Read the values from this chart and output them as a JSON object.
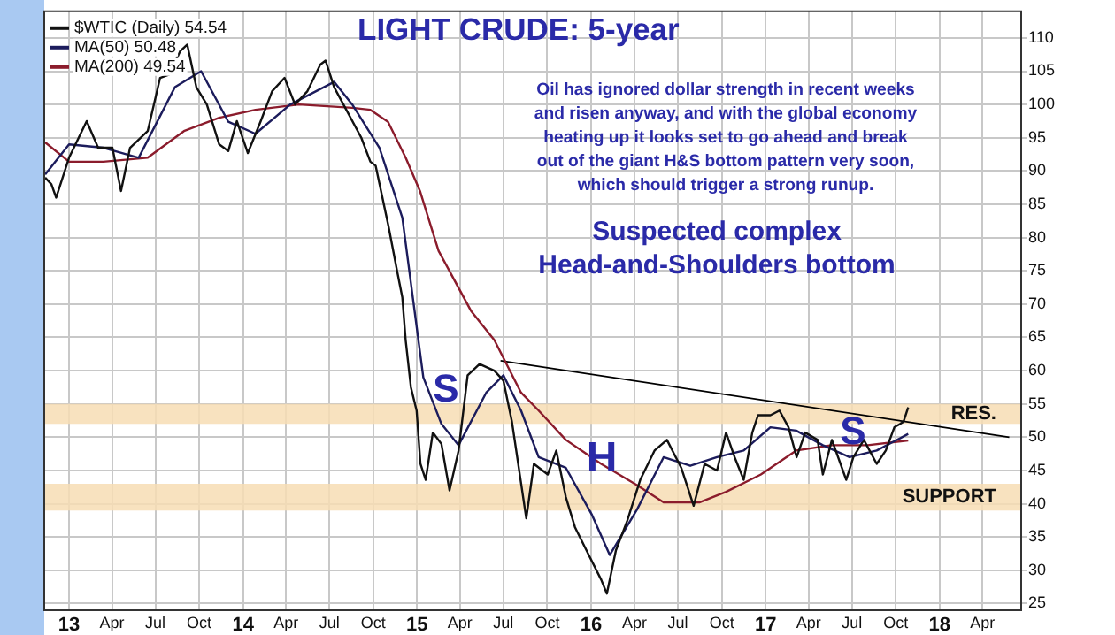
{
  "chart_data": {
    "type": "line",
    "title": "LIGHT CRUDE: 5-year",
    "annotations": [
      "Oil has ignored dollar strength in recent weeks\nand risen anyway, and with the global economy\nheating up it looks set to go ahead and break\nout of the giant H&S bottom pattern very soon,\nwhich should trigger a strong runup.",
      "Suspected complex\nHead-and-Shoulders bottom",
      "S",
      "H",
      "S"
    ],
    "series": [
      {
        "name": "$WTIC (Daily) 54.54",
        "color": "#111111",
        "x": [
          "2012-11-12",
          "2012-11-25",
          "2012-12-05",
          "2013-01-01",
          "2013-02-07",
          "2013-03-03",
          "2013-04-02",
          "2013-04-20",
          "2013-05-09",
          "2013-06-15",
          "2013-07-11",
          "2013-07-30",
          "2013-08-22",
          "2013-09-06",
          "2013-09-25",
          "2013-10-17",
          "2013-11-12",
          "2013-12-01",
          "2013-12-19",
          "2014-01-11",
          "2014-02-07",
          "2014-03-03",
          "2014-03-29",
          "2014-04-20",
          "2014-05-16",
          "2014-06-12",
          "2014-06-23",
          "2014-07-11",
          "2014-08-07",
          "2014-09-06",
          "2014-09-25",
          "2014-10-06",
          "2014-11-02",
          "2014-11-20",
          "2014-12-01",
          "2014-12-08",
          "2014-12-19",
          "2014-12-31",
          "2015-01-08",
          "2015-01-19",
          "2015-02-03",
          "2015-02-21",
          "2015-03-10",
          "2015-03-29",
          "2015-04-17",
          "2015-05-12",
          "2015-06-12",
          "2015-07-01",
          "2015-07-19",
          "2015-08-18",
          "2015-09-03",
          "2015-10-02",
          "2015-10-20",
          "2015-11-09",
          "2015-11-28",
          "2015-12-27",
          "2016-01-22",
          "2016-02-03",
          "2016-02-22",
          "2016-03-17",
          "2016-04-13",
          "2016-05-13",
          "2016-06-08",
          "2016-07-08",
          "2016-08-03",
          "2016-08-26",
          "2016-09-21",
          "2016-10-10",
          "2016-10-28",
          "2016-11-16",
          "2016-12-04",
          "2016-12-16",
          "2017-01-11",
          "2017-01-30",
          "2017-02-18",
          "2017-03-07",
          "2017-03-25",
          "2017-04-20",
          "2017-05-01",
          "2017-05-20",
          "2017-06-19",
          "2017-07-04",
          "2017-07-26",
          "2017-08-22",
          "2017-09-10",
          "2017-09-28",
          "2017-10-17",
          "2017-10-27"
        ],
        "values": [
          89,
          88,
          86,
          92,
          97.5,
          93.5,
          93.5,
          87,
          93.5,
          96,
          104,
          104.5,
          108,
          109,
          102.6,
          100,
          94,
          93,
          97.5,
          92.7,
          97.5,
          102,
          104,
          100,
          102,
          106,
          106.6,
          102.6,
          99,
          95,
          91.4,
          90.8,
          81.7,
          75,
          71,
          64.6,
          57.5,
          54,
          46,
          43.6,
          50.7,
          49,
          42,
          48,
          59.3,
          61,
          60,
          58.5,
          52.3,
          37.8,
          46,
          44.4,
          48,
          41,
          36.5,
          32.3,
          28.6,
          26.5,
          33,
          37.5,
          43.6,
          48,
          49.6,
          45.4,
          39.7,
          46,
          45,
          50.7,
          47,
          43.6,
          50.7,
          53.3,
          53.3,
          54,
          51.5,
          47,
          50.7,
          49.6,
          44.4,
          49.6,
          43.6,
          47,
          49.6,
          46,
          48,
          51.5,
          52.3,
          54.5
        ]
      },
      {
        "name": "MA(50) 50.48",
        "color": "#1c1c5c",
        "x": [
          "2012-11-12",
          "2013-01-01",
          "2013-03-14",
          "2013-05-27",
          "2013-08-11",
          "2013-10-05",
          "2013-12-01",
          "2014-01-27",
          "2014-04-10",
          "2014-07-11",
          "2014-08-18",
          "2014-10-14",
          "2014-12-01",
          "2015-01-14",
          "2015-02-21",
          "2015-03-29",
          "2015-05-26",
          "2015-07-01",
          "2015-08-07",
          "2015-09-13",
          "2015-11-09",
          "2016-01-03",
          "2016-02-09",
          "2016-04-06",
          "2016-06-01",
          "2016-07-27",
          "2016-09-21",
          "2016-11-16",
          "2017-01-11",
          "2017-03-06",
          "2017-05-01",
          "2017-06-26",
          "2017-08-22",
          "2017-10-27"
        ],
        "values": [
          89.5,
          94,
          93.5,
          92,
          102.6,
          105,
          97.4,
          95.6,
          100,
          103.4,
          100,
          93.5,
          83,
          59,
          52,
          48.8,
          56.7,
          59.3,
          54,
          47,
          45.4,
          38.3,
          32.3,
          39.1,
          47,
          45.7,
          47,
          48,
          51.5,
          51,
          48.8,
          47,
          48,
          50.5
        ]
      },
      {
        "name": "MA(200) 49.54",
        "color": "#8b1c2c",
        "x": [
          "2012-11-12",
          "2013-01-01",
          "2013-03-14",
          "2013-06-15",
          "2013-08-30",
          "2013-11-12",
          "2014-01-27",
          "2014-04-28",
          "2014-08-18",
          "2014-09-25",
          "2014-11-01",
          "2014-12-08",
          "2015-01-07",
          "2015-02-15",
          "2015-04-24",
          "2015-06-12",
          "2015-08-07",
          "2015-09-13",
          "2015-11-09",
          "2016-01-22",
          "2016-04-06",
          "2016-06-01",
          "2016-08-15",
          "2016-10-10",
          "2016-12-22",
          "2017-03-06",
          "2017-05-19",
          "2017-08-03",
          "2017-10-27"
        ],
        "values": [
          94.3,
          91.4,
          91.4,
          92,
          96,
          98,
          99.2,
          100,
          99.5,
          99.2,
          97.4,
          92,
          87,
          78,
          69,
          64.6,
          56.7,
          54,
          49.6,
          46,
          42.8,
          40.2,
          40.2,
          41.8,
          44.4,
          48,
          48.8,
          48.8,
          49.5
        ]
      },
      {
        "type": "line",
        "color": "#000000",
        "x": [
          "2015-06-25",
          "2018-05-27"
        ],
        "values": [
          61.5,
          50
        ]
      }
    ],
    "bands": [
      {
        "axis": "y",
        "from": 52,
        "to": 55,
        "label": "RES.",
        "color": "#f7ddb4"
      },
      {
        "axis": "y",
        "from": 39,
        "to": 43,
        "label": "SUPPORT",
        "color": "#f7ddb4"
      }
    ],
    "xlim": [
      "2012-11-10",
      "2018-06-21"
    ],
    "xticks": [
      {
        "value": "2013-01",
        "label": "13"
      },
      {
        "value": "2013-04",
        "label": "Apr"
      },
      {
        "value": "2013-07",
        "label": "Jul"
      },
      {
        "value": "2013-10",
        "label": "Oct"
      },
      {
        "value": "2014-01",
        "label": "14"
      },
      {
        "value": "2014-04",
        "label": "Apr"
      },
      {
        "value": "2014-07",
        "label": "Jul"
      },
      {
        "value": "2014-10",
        "label": "Oct"
      },
      {
        "value": "2015-01",
        "label": "15"
      },
      {
        "value": "2015-04",
        "label": "Apr"
      },
      {
        "value": "2015-07",
        "label": "Jul"
      },
      {
        "value": "2015-10",
        "label": "Oct"
      },
      {
        "value": "2016-01",
        "label": "16"
      },
      {
        "value": "2016-04",
        "label": "Apr"
      },
      {
        "value": "2016-07",
        "label": "Jul"
      },
      {
        "value": "2016-10",
        "label": "Oct"
      },
      {
        "value": "2017-01",
        "label": "17"
      },
      {
        "value": "2017-04",
        "label": "Apr"
      },
      {
        "value": "2017-07",
        "label": "Jul"
      },
      {
        "value": "2017-10",
        "label": "Oct"
      },
      {
        "value": "2018-01",
        "label": "18"
      },
      {
        "value": "2018-04",
        "label": "Apr"
      }
    ],
    "ylim": [
      24,
      114
    ],
    "yticks": [
      25,
      30,
      35,
      40,
      45,
      50,
      55,
      60,
      65,
      70,
      75,
      80,
      85,
      90,
      95,
      100,
      105,
      110
    ],
    "grid": true,
    "legend": "top left",
    "marker": "none",
    "line_style": "solid"
  }
}
